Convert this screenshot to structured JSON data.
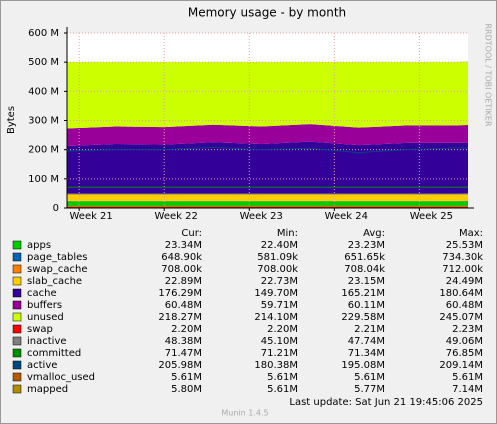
{
  "chart_data": {
    "type": "area",
    "title": "Memory usage - by month",
    "y_label": "Bytes",
    "side_text": "RRDTOOL / TOBI OETIKER",
    "columns": [
      "Cur:",
      "Min:",
      "Avg:",
      "Max:"
    ],
    "last_update": "Last update:  Sat Jun 21 19:45:06 2025",
    "footer": "Munin 1.4.5",
    "grid": true,
    "xlim": [
      0,
      33
    ],
    "xticks": [
      {
        "value": 1,
        "label": "Week 21"
      },
      {
        "value": 8,
        "label": "Week 22"
      },
      {
        "value": 15,
        "label": "Week 23"
      },
      {
        "value": 22,
        "label": "Week 24"
      },
      {
        "value": 29,
        "label": "Week 25"
      }
    ],
    "ylim": [
      0,
      600
    ],
    "yticks": [
      0,
      {
        "value": 100,
        "label": "100 M"
      },
      {
        "value": 200,
        "label": "200 M"
      },
      {
        "value": 300,
        "label": "300 M"
      },
      {
        "value": 400,
        "label": "400 M"
      },
      {
        "value": 500,
        "label": "500 M"
      },
      {
        "value": 600,
        "label": "600 M"
      }
    ],
    "x": [
      0,
      4,
      8,
      12,
      16,
      20,
      24,
      28,
      32,
      33
    ],
    "series": [
      {
        "name": "apps",
        "color": "#00cc00",
        "style": "stack",
        "values": [
          23,
          23,
          23,
          23,
          23,
          23,
          23,
          23,
          23,
          23.3
        ],
        "cur": "23.34M",
        "min": "22.40M",
        "avg": "23.23M",
        "max": "25.53M"
      },
      {
        "name": "page_tables",
        "color": "#0066b3",
        "style": "stack",
        "values": [
          0.65,
          0.65,
          0.65,
          0.65,
          0.65,
          0.65,
          0.65,
          0.65,
          0.65,
          0.65
        ],
        "cur": "648.90k",
        "min": "581.09k",
        "avg": "651.65k",
        "max": "734.30k"
      },
      {
        "name": "swap_cache",
        "color": "#ff8000",
        "style": "stack",
        "values": [
          0.71,
          0.71,
          0.71,
          0.71,
          0.71,
          0.71,
          0.71,
          0.71,
          0.71,
          0.71
        ],
        "cur": "708.00k",
        "min": "708.00k",
        "avg": "708.04k",
        "max": "712.00k"
      },
      {
        "name": "slab_cache",
        "color": "#ffcc00",
        "style": "stack",
        "values": [
          23,
          23,
          23,
          23,
          23,
          23,
          23,
          23,
          23,
          22.9
        ],
        "cur": "22.89M",
        "min": "22.73M",
        "avg": "23.15M",
        "max": "24.49M"
      },
      {
        "name": "cache",
        "color": "#330099",
        "style": "stack",
        "values": [
          165,
          172,
          170,
          178,
          172,
          180,
          168,
          176,
          176,
          176.3
        ],
        "cur": "176.29M",
        "min": "149.70M",
        "avg": "165.21M",
        "max": "180.64M"
      },
      {
        "name": "buffers",
        "color": "#990099",
        "style": "stack",
        "values": [
          60,
          60,
          60,
          60,
          60,
          60,
          60,
          60,
          60,
          60.5
        ],
        "cur": "60.48M",
        "min": "59.71M",
        "avg": "60.11M",
        "max": "60.48M"
      },
      {
        "name": "unused",
        "color": "#ccff00",
        "style": "stack",
        "values": [
          228,
          221,
          223,
          215,
          221,
          213,
          225,
          217,
          217,
          218.3
        ],
        "cur": "218.27M",
        "min": "214.10M",
        "avg": "229.58M",
        "max": "245.07M"
      },
      {
        "name": "swap",
        "color": "#ff0000",
        "style": "line",
        "values": [
          2.2,
          2.2,
          2.2,
          2.2,
          2.2,
          2.2,
          2.2,
          2.2,
          2.2,
          2.2
        ],
        "cur": "2.20M",
        "min": "2.20M",
        "avg": "2.21M",
        "max": "2.23M"
      },
      {
        "name": "inactive",
        "color": "#808080",
        "style": "line",
        "values": [
          48,
          48,
          48,
          48,
          48,
          48,
          48,
          48,
          48,
          48.4
        ],
        "cur": "48.38M",
        "min": "45.10M",
        "avg": "47.74M",
        "max": "49.06M"
      },
      {
        "name": "committed",
        "color": "#008f00",
        "style": "line",
        "values": [
          71,
          71,
          71,
          71,
          71,
          71,
          71,
          71,
          71,
          71.5
        ],
        "cur": "71.47M",
        "min": "71.21M",
        "avg": "71.34M",
        "max": "76.85M"
      },
      {
        "name": "active",
        "color": "#00487d",
        "style": "line",
        "values": [
          195,
          200,
          200,
          208,
          200,
          205,
          190,
          200,
          206,
          206
        ],
        "cur": "205.98M",
        "min": "180.38M",
        "avg": "195.08M",
        "max": "209.14M"
      },
      {
        "name": "vmalloc_used",
        "color": "#b35a00",
        "style": "line",
        "values": [
          5.6,
          5.6,
          5.6,
          5.6,
          5.6,
          5.6,
          5.6,
          5.6,
          5.6,
          5.6
        ],
        "cur": "5.61M",
        "min": "5.61M",
        "avg": "5.61M",
        "max": "5.61M"
      },
      {
        "name": "mapped",
        "color": "#b38f00",
        "style": "line",
        "values": [
          5.8,
          5.8,
          5.8,
          5.8,
          5.8,
          5.8,
          5.8,
          5.8,
          5.8,
          5.8
        ],
        "cur": "5.80M",
        "min": "5.61M",
        "avg": "5.77M",
        "max": "7.14M"
      }
    ]
  }
}
